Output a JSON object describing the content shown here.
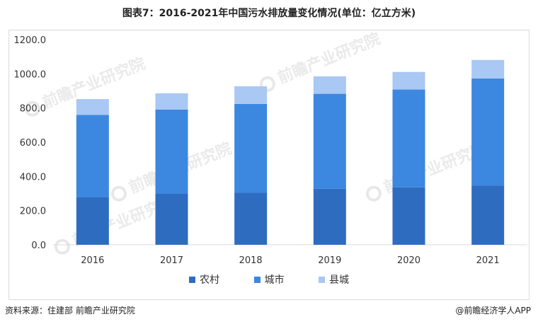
{
  "title": "图表7：2016-2021年中国污水排放量变化情况(单位：亿立方米)",
  "source": "资料来源：住建部 前瞻产业研究院",
  "credit": "@前瞻经济学人APP",
  "watermark": "前瞻产业研究院",
  "colors": {
    "rural": "#2e6cc0",
    "urban": "#3c87e0",
    "county": "#a9c8f3",
    "grid": "#d9d9d9",
    "axis_text": "#333333"
  },
  "chart_data": {
    "type": "bar",
    "stacked": true,
    "categories": [
      "2016",
      "2017",
      "2018",
      "2019",
      "2020",
      "2021"
    ],
    "series": [
      {
        "name": "农村",
        "values": [
          280,
          298,
          304,
          328,
          336,
          347
        ]
      },
      {
        "name": "城市",
        "values": [
          480,
          493,
          520,
          555,
          572,
          626
        ]
      },
      {
        "name": "县城",
        "values": [
          92,
          95,
          103,
          102,
          103,
          108
        ]
      }
    ],
    "ylim": [
      0,
      1200
    ],
    "yticks": [
      "0.0",
      "200.0",
      "400.0",
      "600.0",
      "800.0",
      "1000.0",
      "1200.0"
    ],
    "legend_position": "bottom",
    "grid": false
  }
}
